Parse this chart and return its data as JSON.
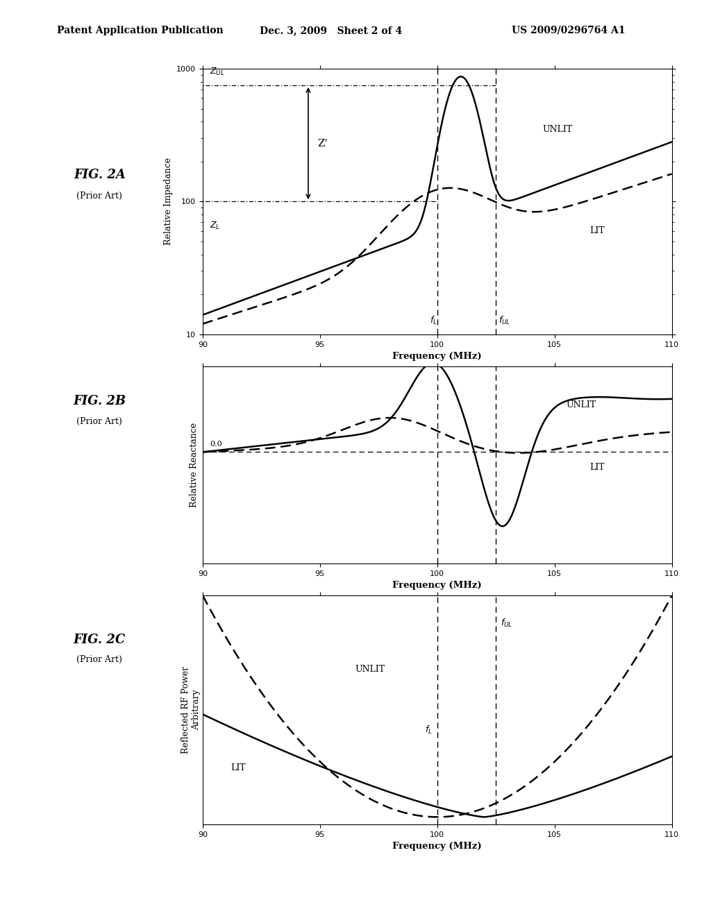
{
  "header_left": "Patent Application Publication",
  "header_mid": "Dec. 3, 2009   Sheet 2 of 4",
  "header_right": "US 2009/0296764 A1",
  "fig_labels": [
    "FIG. 2A",
    "FIG. 2B",
    "FIG. 2C"
  ],
  "fig_sublabels": [
    "(Prior Art)",
    "(Prior Art)",
    "(Prior Art)"
  ],
  "freq_min": 90,
  "freq_max": 110,
  "f_L": 100,
  "f_UL": 102.5,
  "background": "#ffffff"
}
